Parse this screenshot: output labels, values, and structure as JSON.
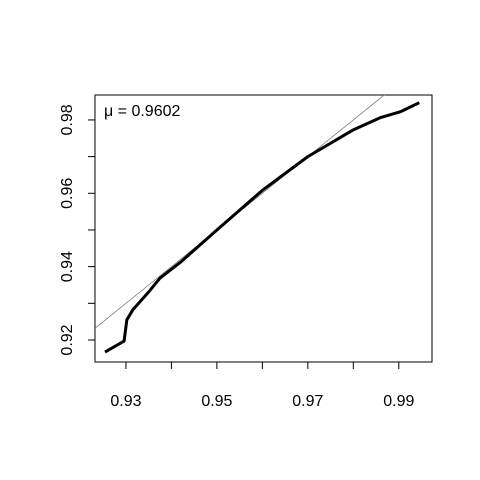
{
  "chart_data": {
    "type": "line",
    "annotation": "μ = 0.9602",
    "x": [
      0.9254,
      0.9296,
      0.9302,
      0.9315,
      0.9348,
      0.9375,
      0.9419,
      0.95,
      0.96,
      0.97,
      0.98,
      0.9859,
      0.9903,
      0.9945
    ],
    "series": [
      {
        "color": "#000000",
        "values": [
          0.9167,
          0.9197,
          0.9255,
          0.9282,
          0.9328,
          0.9369,
          0.9411,
          0.95,
          0.9608,
          0.97,
          0.9773,
          0.9806,
          0.9822,
          0.9847
        ]
      }
    ],
    "reference_line": {
      "slope": 1,
      "intercept": 0,
      "color": "#808080"
    },
    "xlim": [
      0.9232,
      0.9973
    ],
    "xticks": [
      0.93,
      0.95,
      0.97,
      0.99
    ],
    "xminor_ticks": [
      0.94,
      0.96,
      0.98
    ],
    "ylim": [
      0.914,
      0.9868
    ],
    "yticks": [
      0.92,
      0.94,
      0.96,
      0.98
    ],
    "yminor_ticks": [
      0.93,
      0.95,
      0.97
    ]
  }
}
